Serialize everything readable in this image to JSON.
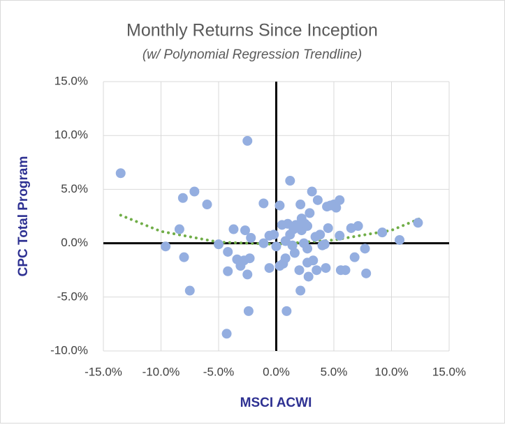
{
  "chart_data": {
    "type": "scatter",
    "title": "Monthly Returns Since Inception",
    "subtitle": "(w/ Polynomial Regression Trendline)",
    "x_label": "MSCI ACWI",
    "y_label": "CPC Total Program",
    "xlim": [
      -15,
      15
    ],
    "ylim": [
      -10,
      15
    ],
    "xticks": [
      {
        "value": -15,
        "label": "-15.0%"
      },
      {
        "value": -10,
        "label": "-10.0%"
      },
      {
        "value": -5,
        "label": "-5.0%"
      },
      {
        "value": 0,
        "label": "0.0%"
      },
      {
        "value": 5,
        "label": "5.0%"
      },
      {
        "value": 10,
        "label": "10.0%"
      },
      {
        "value": 15,
        "label": "15.0%"
      }
    ],
    "yticks": [
      {
        "value": -10,
        "label": "-10.0%"
      },
      {
        "value": -5,
        "label": "-5.0%"
      },
      {
        "value": 0,
        "label": "0.0%"
      },
      {
        "value": 5,
        "label": "5.0%"
      },
      {
        "value": 10,
        "label": "10.0%"
      },
      {
        "value": 15,
        "label": "15.0%"
      }
    ],
    "grid": true,
    "color": "#94aee0",
    "x": [
      -13.5,
      -9.6,
      -8.0,
      -8.1,
      -8.4,
      -7.5,
      -7.1,
      -6.0,
      -5.0,
      -4.2,
      -4.2,
      -4.3,
      -3.7,
      -3.4,
      -3.1,
      -2.8,
      -2.7,
      -2.5,
      -2.5,
      -2.4,
      -2.3,
      -2.2,
      -1.1,
      -1.1,
      -0.6,
      -0.6,
      -0.2,
      0,
      0.3,
      0.3,
      0.5,
      0.6,
      0.8,
      0.8,
      0.9,
      1.0,
      1.2,
      1.4,
      1.2,
      1.5,
      1.7,
      1.6,
      2.0,
      2.0,
      2.1,
      2.1,
      2.2,
      2.2,
      2.4,
      2.5,
      2.7,
      2.7,
      2.7,
      2.8,
      2.9,
      3.1,
      3.2,
      3.4,
      3.5,
      3.6,
      3.8,
      4.0,
      4.2,
      4.3,
      4.4,
      4.5,
      4.7,
      5.0,
      5.2,
      5.5,
      5.5,
      5.6,
      6.0,
      6.5,
      6.8,
      7.1,
      7.7,
      7.8,
      9.2,
      10.7,
      12.3
    ],
    "values": [
      6.5,
      -0.3,
      -1.3,
      4.2,
      1.3,
      -4.4,
      4.8,
      3.6,
      -0.1,
      -0.8,
      -2.6,
      -8.4,
      1.3,
      -1.5,
      -2.1,
      -1.6,
      1.2,
      9.5,
      -2.9,
      -6.3,
      -1.4,
      0.5,
      3.7,
      0.0,
      -2.3,
      0.7,
      0.8,
      -0.3,
      3.5,
      -2.1,
      1.7,
      -1.9,
      0.2,
      -1.4,
      -6.3,
      1.8,
      5.8,
      -0.2,
      0.8,
      1.3,
      1.7,
      -0.9,
      1.7,
      -2.5,
      -4.4,
      3.6,
      2.3,
      1.2,
      0.0,
      1.8,
      1.6,
      -0.5,
      -1.8,
      -3.1,
      2.8,
      4.8,
      -1.6,
      0.6,
      -2.5,
      4.0,
      0.8,
      -0.2,
      -0.1,
      -2.3,
      3.4,
      1.4,
      3.5,
      3.6,
      3.3,
      4.0,
      0.7,
      -2.5,
      -2.5,
      1.4,
      -1.3,
      1.6,
      -0.5,
      -2.8,
      1.0,
      0.3,
      1.9
    ],
    "trendline": {
      "color": "#70ad47",
      "x": [
        -13.5,
        -10,
        -5,
        0,
        5,
        10,
        12.5
      ],
      "values": [
        2.6,
        1.1,
        0.1,
        -0.1,
        0.3,
        1.2,
        2.3
      ]
    }
  }
}
